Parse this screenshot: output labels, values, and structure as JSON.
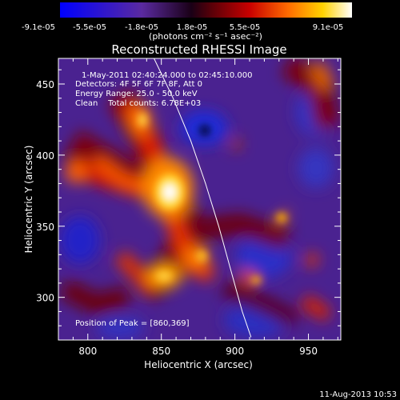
{
  "colorbar": {
    "ticks": [
      "-9.1e-05",
      "-5.5e-05",
      "-1.8e-05",
      "1.8e-05",
      "5.5e-05",
      "9.1e-05"
    ],
    "units": "(photons cm⁻² s⁻¹ asec⁻²)",
    "range": [
      -9.1e-05,
      9.1e-05
    ]
  },
  "chart_data": {
    "type": "heatmap",
    "title": "Reconstructed RHESSI Image",
    "xlabel": "Heliocentric X (arcsec)",
    "ylabel": "Heliocentric Y (arcsec)",
    "xlim": [
      780,
      972
    ],
    "ylim": [
      270,
      468
    ],
    "xticks": [
      800,
      850,
      900,
      950
    ],
    "yticks": [
      300,
      350,
      400,
      450
    ],
    "annotations": [
      "1-May-2011 02:40:24.000 to 02:45:10.000",
      "Detectors: 4F 5F 6F 7F 8F, Att 0",
      "Energy Range: 25.0 - 50.0 keV",
      "Clean    Total counts: 6.78E+03"
    ],
    "peak_label": "Position of Peak = [860,369]",
    "peak": [
      860,
      369
    ],
    "limb_curve": [
      [
        845,
        468
      ],
      [
        858,
        440
      ],
      [
        870,
        410
      ],
      [
        880,
        380
      ],
      [
        889,
        350
      ],
      [
        897,
        320
      ],
      [
        905,
        290
      ],
      [
        911,
        272
      ]
    ]
  },
  "footer": {
    "timestamp": "11-Aug-2013 10:53"
  }
}
